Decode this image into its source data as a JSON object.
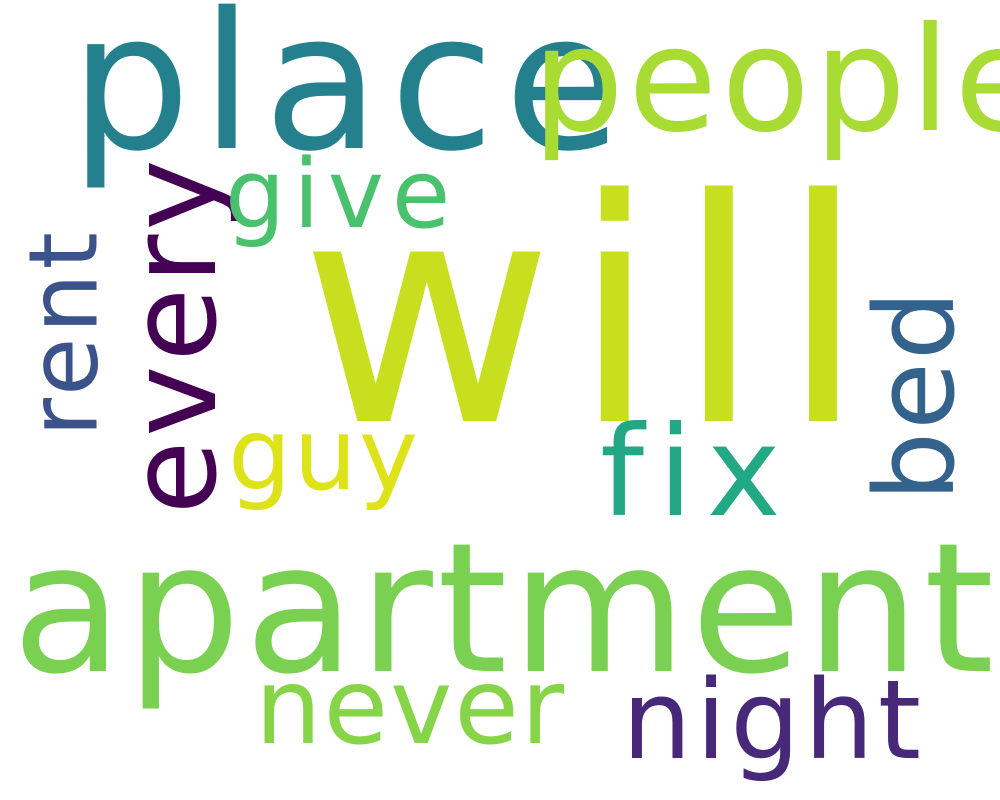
{
  "words": {
    "will": {
      "text": "will",
      "color": "#c8df1f"
    },
    "place": {
      "text": "place",
      "color": "#25808e"
    },
    "people": {
      "text": "people",
      "color": "#a8db34"
    },
    "apartment": {
      "text": "apartment",
      "color": "#7ad151"
    },
    "every": {
      "text": "every",
      "color": "#440154"
    },
    "give": {
      "text": "give",
      "color": "#4ac16d"
    },
    "rent": {
      "text": "rent",
      "color": "#3b528b"
    },
    "guy": {
      "text": "guy",
      "color": "#dde318"
    },
    "fix": {
      "text": "fix",
      "color": "#22a884"
    },
    "bed": {
      "text": "bed",
      "color": "#33638d"
    },
    "never": {
      "text": "never",
      "color": "#86d549"
    },
    "night": {
      "text": "night",
      "color": "#482878"
    }
  }
}
